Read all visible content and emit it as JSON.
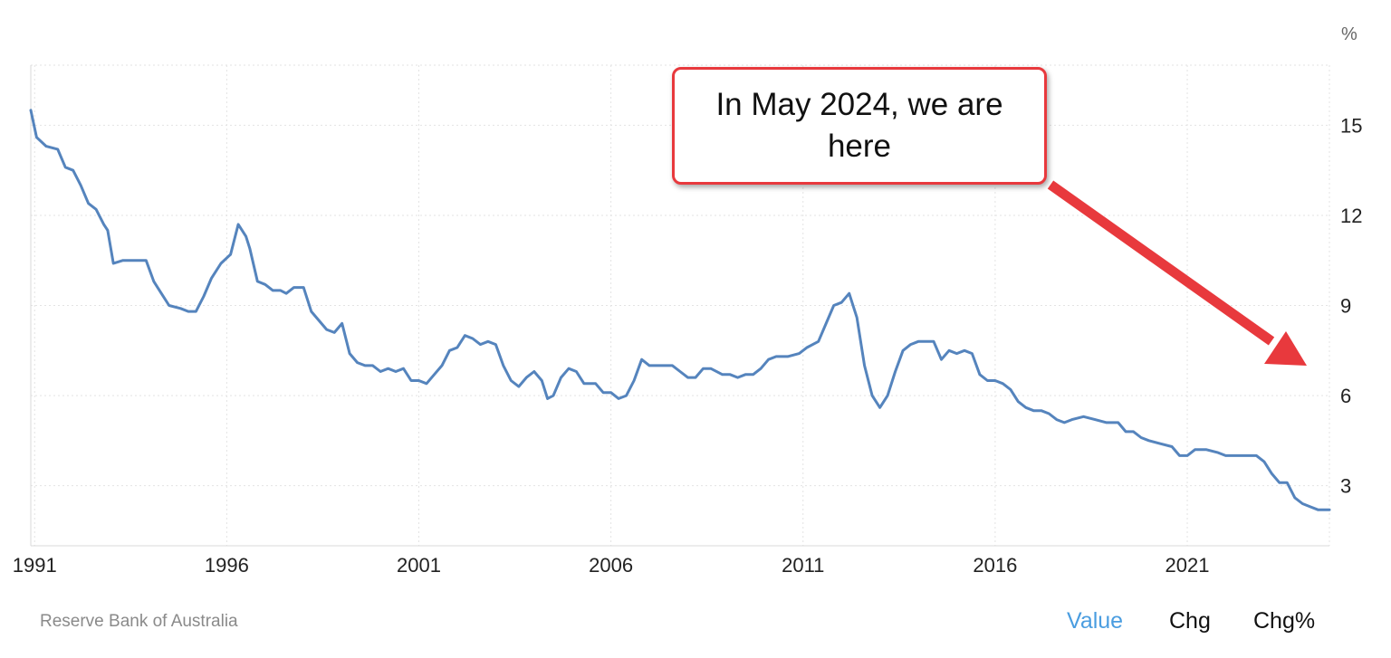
{
  "chart_data": {
    "type": "line",
    "unit_label": "%",
    "x_ticks": [
      "1991",
      "1996",
      "2001",
      "2006",
      "2011",
      "2016",
      "2021"
    ],
    "y_ticks": [
      3,
      6,
      9,
      12,
      15
    ],
    "xlim": [
      1990.9,
      2024.7
    ],
    "ylim": [
      1,
      17
    ],
    "grid": true,
    "series": [
      {
        "color": "#5584bd",
        "points": [
          [
            1990.9,
            15.5
          ],
          [
            1991.05,
            14.6
          ],
          [
            1991.3,
            14.3
          ],
          [
            1991.6,
            14.2
          ],
          [
            1991.8,
            13.6
          ],
          [
            1992.0,
            13.5
          ],
          [
            1992.2,
            13.0
          ],
          [
            1992.4,
            12.4
          ],
          [
            1992.6,
            12.2
          ],
          [
            1992.8,
            11.7
          ],
          [
            1992.9,
            11.5
          ],
          [
            1993.05,
            10.4
          ],
          [
            1993.3,
            10.5
          ],
          [
            1993.6,
            10.5
          ],
          [
            1993.9,
            10.5
          ],
          [
            1994.1,
            9.8
          ],
          [
            1994.3,
            9.4
          ],
          [
            1994.5,
            9.0
          ],
          [
            1994.8,
            8.9
          ],
          [
            1995.0,
            8.8
          ],
          [
            1995.2,
            8.8
          ],
          [
            1995.4,
            9.3
          ],
          [
            1995.6,
            9.9
          ],
          [
            1995.85,
            10.4
          ],
          [
            1996.1,
            10.7
          ],
          [
            1996.3,
            11.7
          ],
          [
            1996.5,
            11.3
          ],
          [
            1996.6,
            10.9
          ],
          [
            1996.8,
            9.8
          ],
          [
            1997.0,
            9.7
          ],
          [
            1997.2,
            9.5
          ],
          [
            1997.4,
            9.5
          ],
          [
            1997.55,
            9.4
          ],
          [
            1997.75,
            9.6
          ],
          [
            1998.0,
            9.6
          ],
          [
            1998.2,
            8.8
          ],
          [
            1998.4,
            8.5
          ],
          [
            1998.6,
            8.2
          ],
          [
            1998.8,
            8.1
          ],
          [
            1999.0,
            8.4
          ],
          [
            1999.2,
            7.4
          ],
          [
            1999.4,
            7.1
          ],
          [
            1999.6,
            7.0
          ],
          [
            1999.8,
            7.0
          ],
          [
            2000.0,
            6.8
          ],
          [
            2000.2,
            6.9
          ],
          [
            2000.4,
            6.8
          ],
          [
            2000.6,
            6.9
          ],
          [
            2000.8,
            6.5
          ],
          [
            2001.0,
            6.5
          ],
          [
            2001.2,
            6.4
          ],
          [
            2001.4,
            6.7
          ],
          [
            2001.6,
            7.0
          ],
          [
            2001.8,
            7.5
          ],
          [
            2002.0,
            7.6
          ],
          [
            2002.2,
            8.0
          ],
          [
            2002.4,
            7.9
          ],
          [
            2002.6,
            7.7
          ],
          [
            2002.8,
            7.8
          ],
          [
            2003.0,
            7.7
          ],
          [
            2003.2,
            7.0
          ],
          [
            2003.4,
            6.5
          ],
          [
            2003.6,
            6.3
          ],
          [
            2003.8,
            6.6
          ],
          [
            2004.0,
            6.8
          ],
          [
            2004.2,
            6.5
          ],
          [
            2004.35,
            5.9
          ],
          [
            2004.5,
            6.0
          ],
          [
            2004.7,
            6.6
          ],
          [
            2004.9,
            6.9
          ],
          [
            2005.1,
            6.8
          ],
          [
            2005.3,
            6.4
          ],
          [
            2005.6,
            6.4
          ],
          [
            2005.8,
            6.1
          ],
          [
            2006.0,
            6.1
          ],
          [
            2006.2,
            5.9
          ],
          [
            2006.4,
            6.0
          ],
          [
            2006.6,
            6.5
          ],
          [
            2006.8,
            7.2
          ],
          [
            2007.0,
            7.0
          ],
          [
            2007.3,
            7.0
          ],
          [
            2007.6,
            7.0
          ],
          [
            2007.8,
            6.8
          ],
          [
            2008.0,
            6.6
          ],
          [
            2008.2,
            6.6
          ],
          [
            2008.4,
            6.9
          ],
          [
            2008.6,
            6.9
          ],
          [
            2008.9,
            6.7
          ],
          [
            2009.1,
            6.7
          ],
          [
            2009.3,
            6.6
          ],
          [
            2009.5,
            6.7
          ],
          [
            2009.7,
            6.7
          ],
          [
            2009.9,
            6.9
          ],
          [
            2010.1,
            7.2
          ],
          [
            2010.3,
            7.3
          ],
          [
            2010.6,
            7.3
          ],
          [
            2010.9,
            7.4
          ],
          [
            2011.1,
            7.6
          ],
          [
            2011.4,
            7.8
          ],
          [
            2011.6,
            8.4
          ],
          [
            2011.8,
            9.0
          ],
          [
            2012.0,
            9.1
          ],
          [
            2012.2,
            9.4
          ],
          [
            2012.4,
            8.6
          ],
          [
            2012.6,
            7.0
          ],
          [
            2012.8,
            6.0
          ],
          [
            2013.0,
            5.6
          ],
          [
            2013.2,
            6.0
          ],
          [
            2013.4,
            6.8
          ],
          [
            2013.6,
            7.5
          ],
          [
            2013.8,
            7.7
          ],
          [
            2014.0,
            7.8
          ],
          [
            2014.2,
            7.8
          ],
          [
            2014.4,
            7.8
          ],
          [
            2014.6,
            7.2
          ],
          [
            2014.8,
            7.5
          ],
          [
            2015.0,
            7.4
          ],
          [
            2015.2,
            7.5
          ],
          [
            2015.4,
            7.4
          ],
          [
            2015.6,
            6.7
          ],
          [
            2015.8,
            6.5
          ],
          [
            2016.0,
            6.5
          ],
          [
            2016.2,
            6.4
          ],
          [
            2016.4,
            6.2
          ],
          [
            2016.6,
            5.8
          ],
          [
            2016.8,
            5.6
          ],
          [
            2017.0,
            5.5
          ],
          [
            2017.2,
            5.5
          ],
          [
            2017.4,
            5.4
          ],
          [
            2017.6,
            5.2
          ],
          [
            2017.8,
            5.1
          ],
          [
            2018.0,
            5.2
          ],
          [
            2018.3,
            5.3
          ],
          [
            2018.6,
            5.2
          ],
          [
            2018.9,
            5.1
          ],
          [
            2019.2,
            5.1
          ],
          [
            2019.4,
            4.8
          ],
          [
            2019.6,
            4.8
          ],
          [
            2019.8,
            4.6
          ],
          [
            2020.0,
            4.5
          ],
          [
            2020.3,
            4.4
          ],
          [
            2020.6,
            4.3
          ],
          [
            2020.8,
            4.0
          ],
          [
            2021.0,
            4.0
          ],
          [
            2021.2,
            4.2
          ],
          [
            2021.5,
            4.2
          ],
          [
            2021.8,
            4.1
          ],
          [
            2022.0,
            4.0
          ],
          [
            2022.3,
            4.0
          ],
          [
            2022.6,
            4.0
          ],
          [
            2022.8,
            4.0
          ],
          [
            2023.0,
            3.8
          ],
          [
            2023.2,
            3.4
          ],
          [
            2023.4,
            3.1
          ],
          [
            2023.6,
            3.1
          ],
          [
            2023.8,
            2.6
          ],
          [
            2024.0,
            2.4
          ],
          [
            2024.2,
            2.3
          ],
          [
            2024.4,
            2.2
          ],
          [
            2024.7,
            2.2
          ]
        ]
      }
    ]
  },
  "annotation": {
    "text": "In May 2024, we are here"
  },
  "source": "Reserve Bank of Australia",
  "tabs": [
    {
      "label": "Value",
      "active": true
    },
    {
      "label": "Chg",
      "active": false
    },
    {
      "label": "Chg%",
      "active": false
    }
  ]
}
